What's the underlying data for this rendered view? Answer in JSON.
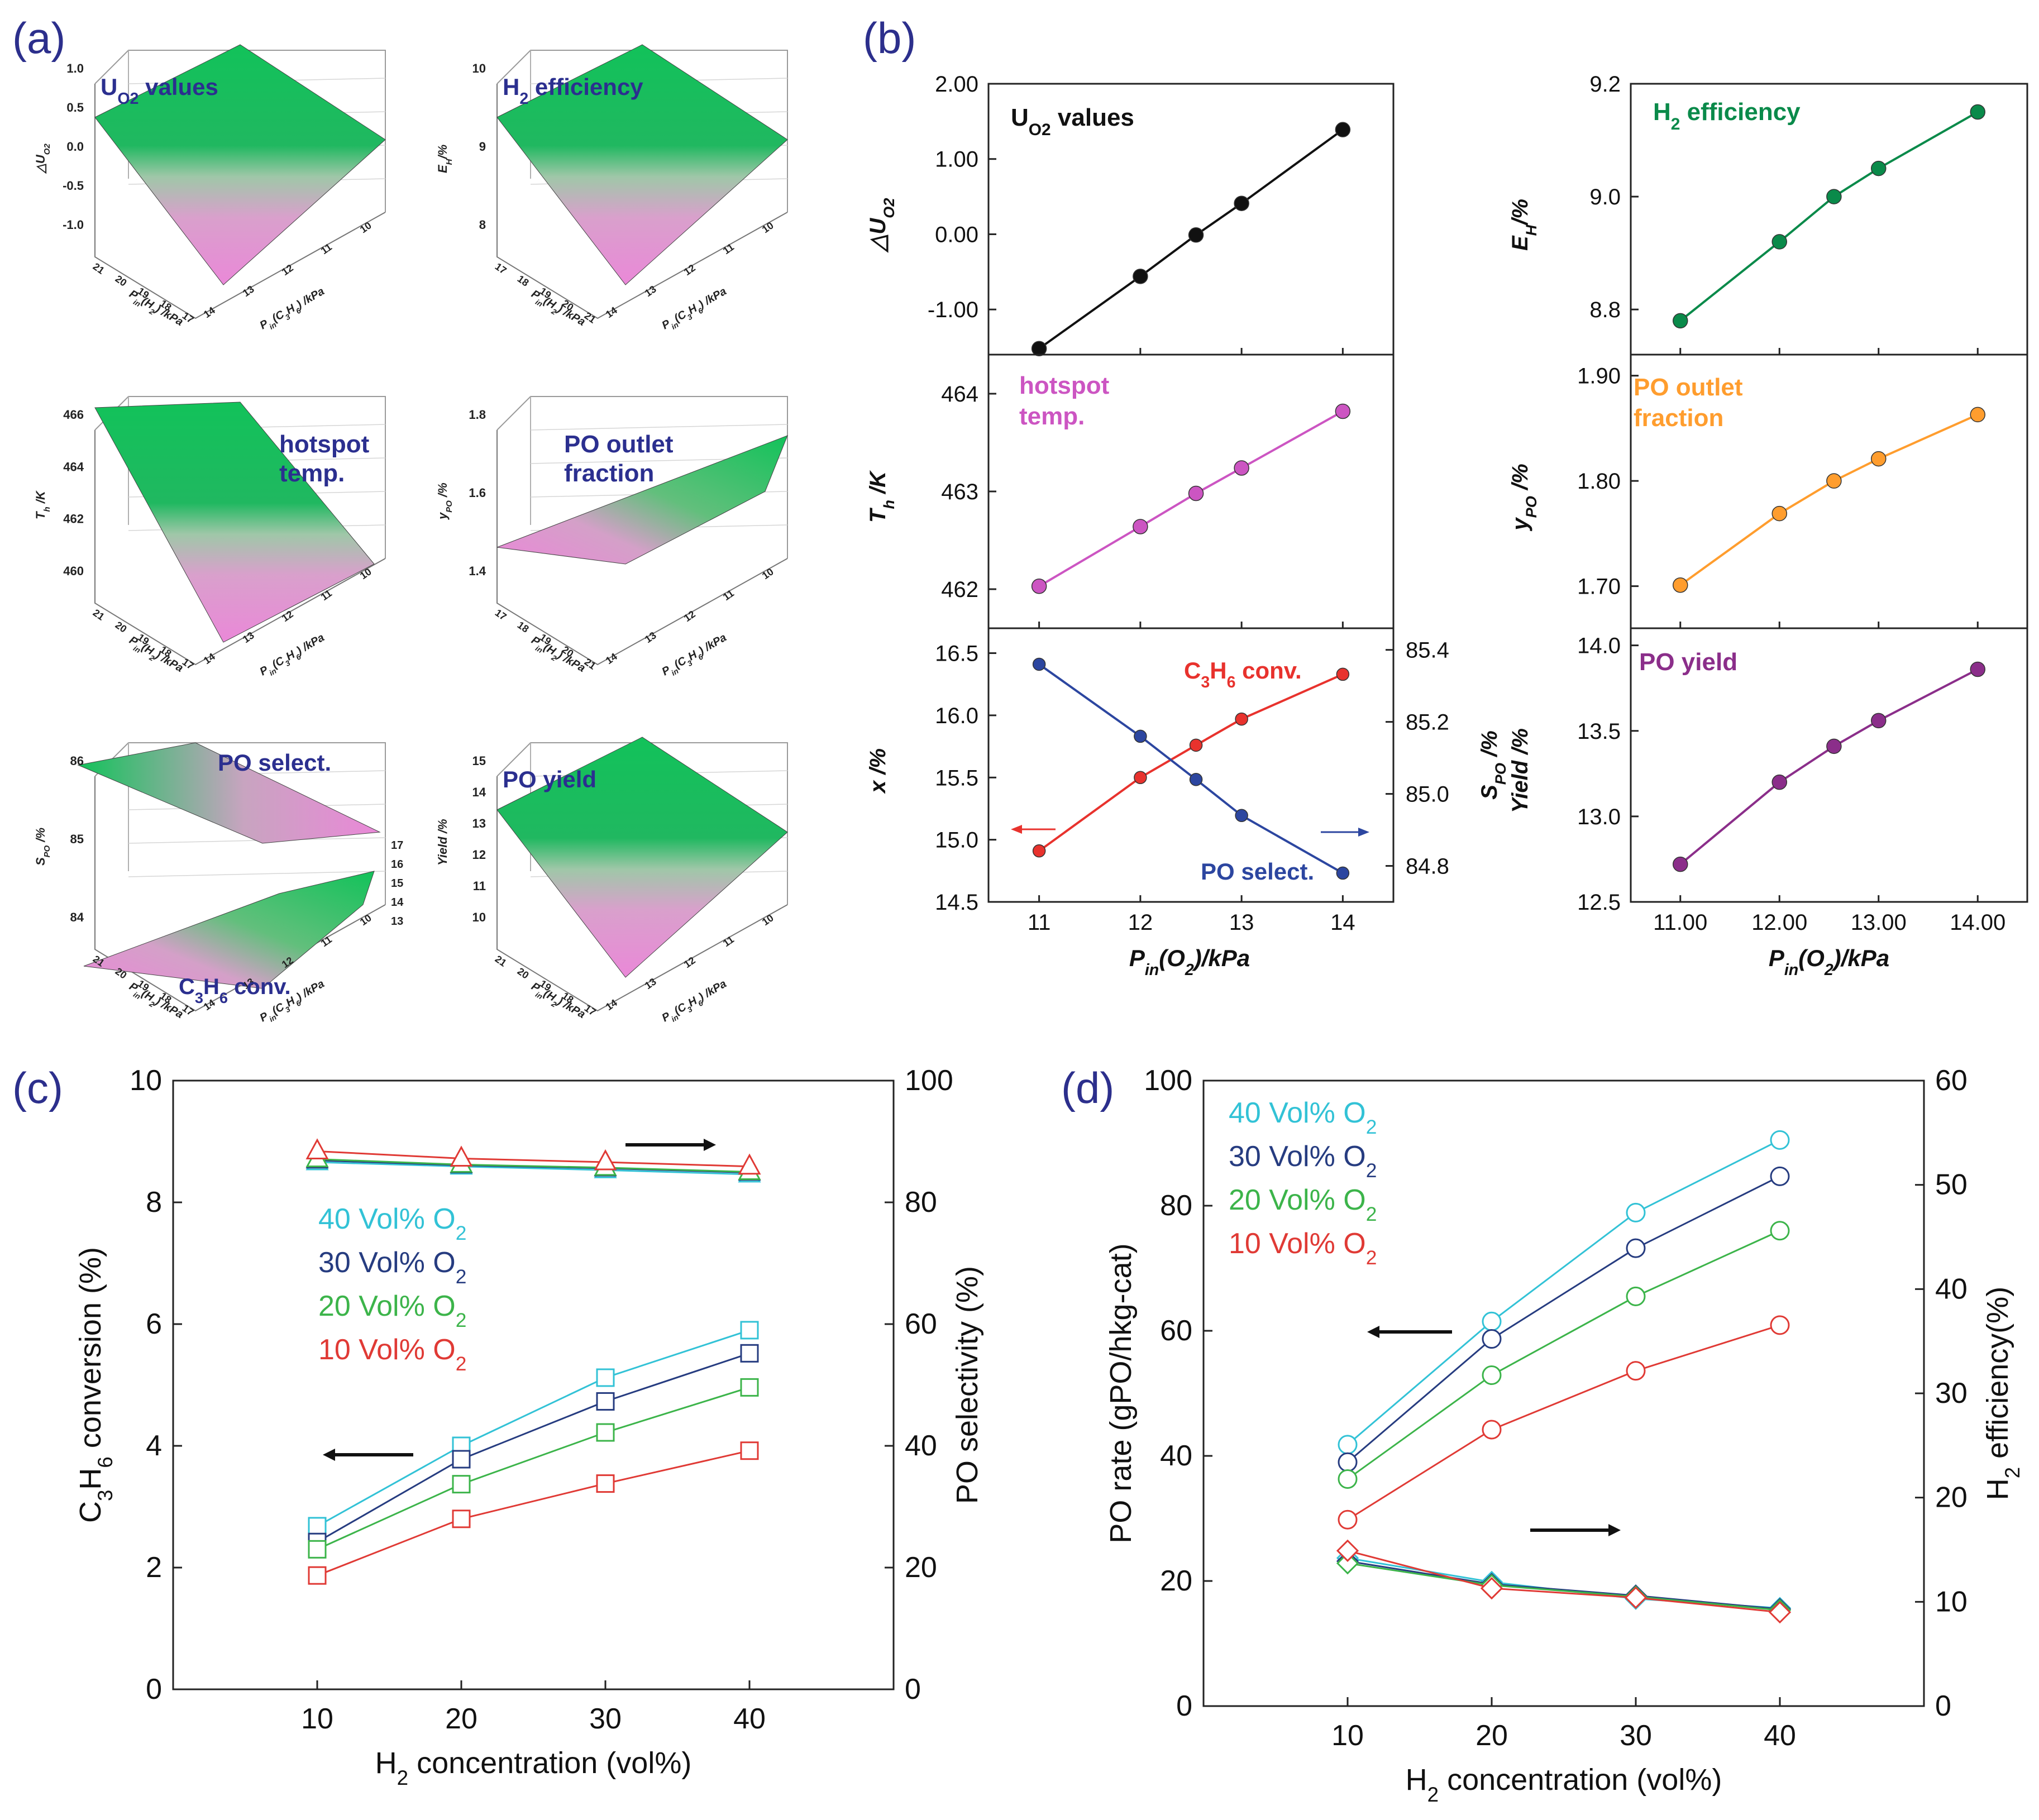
{
  "colors": {
    "surface_green": "#17c35a",
    "surface_pink": "#e98ad6",
    "navy_text": "#2b2f8f",
    "panel_label": "#2c2f8c",
    "black": "#111111",
    "green": "#0a8a4a",
    "pink": "#cc55c2",
    "orange": "#ff9d2e",
    "purple": "#8b2e8a",
    "red": "#e8322d",
    "blue": "#2c46a0",
    "cyan": "#32c2d6",
    "navy": "#263c80",
    "lime": "#3cb44a",
    "red10": "#e03a35"
  },
  "panel_labels": {
    "a": "(a)",
    "b": "(b)",
    "c": "(c)",
    "d": "(d)"
  },
  "chart_data": [
    {
      "id": "a1",
      "type": "surface3d",
      "title": "U_O2 values",
      "z_label": "△U_O2",
      "z_ticks": [
        "1.0",
        "0.5",
        "0.0",
        "-0.5",
        "-1.0"
      ],
      "x_label": "P_in(C3H6) /kPa",
      "x_ticks": [
        "14",
        "13",
        "12",
        "11",
        "10"
      ],
      "y_label": "P_in(H2) /kPa",
      "y_ticks": [
        "21",
        "20",
        "19",
        "18",
        "17"
      ]
    },
    {
      "id": "a2",
      "type": "surface3d",
      "title": "H2 efficiency",
      "z_label": "E_H/%",
      "z_ticks": [
        "10",
        "9",
        "8"
      ],
      "x_label": "P_in(C3H6) /kPa",
      "x_ticks": [
        "14",
        "13",
        "12",
        "11",
        "10"
      ],
      "y_label": "P_in(H2) /kPa",
      "y_ticks": [
        "17",
        "18",
        "19",
        "20",
        "21"
      ]
    },
    {
      "id": "a3",
      "type": "surface3d",
      "title": "hotspot temp.",
      "z_label": "T_h /K",
      "z_ticks": [
        "466",
        "464",
        "462",
        "460"
      ],
      "x_label": "P_in(C3H6) /kPa",
      "x_ticks": [
        "14",
        "13",
        "12",
        "11",
        "10"
      ],
      "y_label": "P_in(H2) /kPa",
      "y_ticks": [
        "21",
        "20",
        "19",
        "18",
        "17"
      ]
    },
    {
      "id": "a4",
      "type": "surface3d",
      "title": "PO outlet fraction",
      "z_label": "y_PO /%",
      "z_ticks": [
        "1.8",
        "1.6",
        "1.4"
      ],
      "x_label": "P_in(C3H6) /kPa",
      "x_ticks": [
        "14",
        "13",
        "12",
        "11",
        "10"
      ],
      "y_label": "P_in(H2) /kPa",
      "y_ticks": [
        "17",
        "18",
        "19",
        "20",
        "21"
      ]
    },
    {
      "id": "a5",
      "type": "surface3d",
      "title": "PO select.",
      "title2": "C3H6 conv.",
      "z_label": "S_PO /%",
      "z_ticks": [
        "86",
        "85",
        "84"
      ],
      "z2_label": "x /%",
      "z2_ticks": [
        "17",
        "16",
        "15",
        "14",
        "13"
      ],
      "x_label": "P_in(C3H6) /kPa",
      "x_ticks": [
        "14",
        "13",
        "12",
        "11",
        "10"
      ],
      "y_label": "P_in(H2) /kPa",
      "y_ticks": [
        "21",
        "20",
        "19",
        "18",
        "17"
      ]
    },
    {
      "id": "a6",
      "type": "surface3d",
      "title": "PO yield",
      "z_label": "Yield /%",
      "z_ticks": [
        "15",
        "14",
        "13",
        "12",
        "11",
        "10"
      ],
      "x_label": "P_in(C3H6) /kPa",
      "x_ticks": [
        "14",
        "13",
        "12",
        "11",
        "10"
      ],
      "y_label": "P_in(H2) /kPa",
      "y_ticks": [
        "21",
        "20",
        "19",
        "18",
        "17"
      ]
    },
    {
      "id": "b1",
      "type": "line",
      "title": "U_O2 values",
      "ylabel": "△U_O2",
      "x": [
        11,
        12,
        12.55,
        13,
        14
      ],
      "values": [
        -1.52,
        -0.56,
        -0.01,
        0.41,
        1.39
      ],
      "ylim": [
        -1.6,
        2.0
      ],
      "yticks": [
        "2.00",
        "1.00",
        "0.00",
        "-1.00"
      ],
      "ytick_values": [
        2,
        1,
        0,
        -1
      ]
    },
    {
      "id": "b2",
      "type": "line",
      "title": "H2 efficiency",
      "ylabel": "E_H/%",
      "x": [
        11,
        12,
        12.55,
        13,
        14
      ],
      "values": [
        8.78,
        8.92,
        9.0,
        9.05,
        9.15
      ],
      "ylim": [
        8.72,
        9.2
      ],
      "yticks": [
        "9.2",
        "9.0",
        "8.8"
      ],
      "ytick_values": [
        9.2,
        9.0,
        8.8
      ]
    },
    {
      "id": "b3",
      "type": "line",
      "title": "hotspot temp.",
      "ylabel": "T_h /K",
      "x": [
        11,
        12,
        12.55,
        13,
        14
      ],
      "values": [
        462.03,
        462.64,
        462.98,
        463.24,
        463.82
      ],
      "ylim": [
        461.6,
        464.4
      ],
      "yticks": [
        "464",
        "463",
        "462"
      ],
      "ytick_values": [
        464,
        463,
        462
      ]
    },
    {
      "id": "b4",
      "type": "line",
      "title": "PO outlet fraction",
      "ylabel": "y_PO /%",
      "x": [
        11,
        12,
        12.55,
        13,
        14
      ],
      "values": [
        1.701,
        1.769,
        1.8,
        1.821,
        1.863
      ],
      "ylim": [
        1.66,
        1.92
      ],
      "yticks": [
        "1.90",
        "1.80",
        "1.70"
      ],
      "ytick_values": [
        1.9,
        1.8,
        1.7
      ]
    },
    {
      "id": "b5",
      "type": "line-dual",
      "series": [
        {
          "name": "C3H6 conv.",
          "axis": "left",
          "values": [
            14.91,
            15.5,
            15.76,
            15.97,
            16.33
          ]
        },
        {
          "name": "PO select.",
          "axis": "right",
          "values": [
            85.36,
            85.16,
            85.04,
            84.94,
            84.78
          ]
        }
      ],
      "x": [
        11,
        12,
        12.55,
        13,
        14
      ],
      "ylabel": "x /%",
      "y2label": "S_PO /%",
      "ylim": [
        14.5,
        16.7
      ],
      "y2lim": [
        84.7,
        85.46
      ],
      "yticks": [
        "16.5",
        "16.0",
        "15.5",
        "15.0",
        "14.5"
      ],
      "ytick_values": [
        16.5,
        16.0,
        15.5,
        15.0,
        14.5
      ],
      "y2ticks": [
        "85.4",
        "85.2",
        "85.0",
        "84.8"
      ],
      "y2tick_values": [
        85.4,
        85.2,
        85.0,
        84.8
      ],
      "xlabel": "P_in(O2)/kPa",
      "xticks": [
        "11",
        "12",
        "13",
        "14"
      ],
      "xtick_values": [
        11,
        12,
        13,
        14
      ],
      "xlim": [
        10.5,
        14.5
      ]
    },
    {
      "id": "b6",
      "type": "line",
      "title": "PO yield",
      "ylabel": "Yield /%",
      "x": [
        11,
        12,
        12.55,
        13,
        14
      ],
      "values": [
        12.72,
        13.2,
        13.41,
        13.56,
        13.86
      ],
      "ylim": [
        12.5,
        14.1
      ],
      "yticks": [
        "14.0",
        "13.5",
        "13.0",
        "12.5"
      ],
      "ytick_values": [
        14.0,
        13.5,
        13.0,
        12.5
      ],
      "xlabel": "P_in(O2)/kPa",
      "xticks": [
        "11.00",
        "12.00",
        "13.00",
        "14.00"
      ],
      "xtick_values": [
        11,
        12,
        13,
        14
      ],
      "xlim": [
        10.5,
        14.5
      ]
    },
    {
      "id": "c",
      "type": "line-dual",
      "xlabel": "H2 concentration (vol%)",
      "ylabel": "C3H6 conversion (%)",
      "y2label": "PO selectivity (%)",
      "x": [
        10,
        20,
        30,
        40
      ],
      "xlim": [
        0,
        50
      ],
      "ylim": [
        0,
        10
      ],
      "y2lim": [
        0,
        100
      ],
      "xticks": [
        "10",
        "20",
        "30",
        "40"
      ],
      "xtick_values": [
        10,
        20,
        30,
        40
      ],
      "yticks": [
        "0",
        "2",
        "4",
        "6",
        "8",
        "10"
      ],
      "ytick_values": [
        0,
        2,
        4,
        6,
        8,
        10
      ],
      "y2ticks": [
        "0",
        "20",
        "40",
        "60",
        "80",
        "100"
      ],
      "y2tick_values": [
        0,
        20,
        40,
        60,
        80,
        100
      ],
      "legend": [
        "40 Vol% O2",
        "30 Vol% O2",
        "20 Vol% O2",
        "10 Vol% O2"
      ],
      "series": [
        {
          "name": "40 Vol% O2",
          "conversion": [
            2.68,
            4.0,
            5.12,
            5.9
          ],
          "selectivity": [
            86.6,
            85.9,
            85.3,
            84.6
          ]
        },
        {
          "name": "30 Vol% O2",
          "conversion": [
            2.42,
            3.78,
            4.73,
            5.52
          ],
          "selectivity": [
            86.9,
            86.1,
            85.6,
            84.9
          ]
        },
        {
          "name": "20 Vol% O2",
          "conversion": [
            2.3,
            3.37,
            4.22,
            4.96
          ],
          "selectivity": [
            87.1,
            86.2,
            85.7,
            85.0
          ]
        },
        {
          "name": "10 Vol% O2",
          "conversion": [
            1.87,
            2.8,
            3.38,
            3.92
          ],
          "selectivity": [
            88.4,
            87.2,
            86.6,
            85.9
          ]
        }
      ]
    },
    {
      "id": "d",
      "type": "line-dual",
      "xlabel": "H2 concentration (vol%)",
      "ylabel": "PO rate (gPO/hkg-cat)",
      "y2label": "H2 efficiency(%)",
      "x": [
        10,
        20,
        30,
        40
      ],
      "xlim": [
        0,
        50
      ],
      "ylim": [
        0,
        100
      ],
      "y2lim": [
        0,
        60
      ],
      "xticks": [
        "10",
        "20",
        "30",
        "40"
      ],
      "xtick_values": [
        10,
        20,
        30,
        40
      ],
      "yticks": [
        "0",
        "20",
        "40",
        "60",
        "80",
        "100"
      ],
      "ytick_values": [
        0,
        20,
        40,
        60,
        80,
        100
      ],
      "y2ticks": [
        "0",
        "10",
        "20",
        "30",
        "40",
        "50",
        "60"
      ],
      "y2tick_values": [
        0,
        10,
        20,
        30,
        40,
        50,
        60
      ],
      "legend": [
        "40 Vol% O2",
        "30 Vol% O2",
        "20 Vol% O2",
        "10 Vol% O2"
      ],
      "series": [
        {
          "name": "40 Vol% O2",
          "po_rate": [
            41.8,
            61.5,
            78.9,
            90.5
          ],
          "h2_efficiency": [
            14.2,
            11.9,
            10.3,
            9.4
          ]
        },
        {
          "name": "30 Vol% O2",
          "po_rate": [
            39.0,
            58.7,
            73.2,
            84.7
          ],
          "h2_efficiency": [
            13.9,
            11.7,
            10.6,
            9.3
          ]
        },
        {
          "name": "20 Vol% O2",
          "po_rate": [
            36.3,
            52.9,
            65.5,
            76.0
          ],
          "h2_efficiency": [
            13.7,
            11.6,
            10.5,
            9.2
          ]
        },
        {
          "name": "10 Vol% O2",
          "po_rate": [
            29.8,
            44.2,
            53.6,
            60.9
          ],
          "h2_efficiency": [
            14.9,
            11.3,
            10.4,
            9.0
          ]
        }
      ]
    }
  ]
}
